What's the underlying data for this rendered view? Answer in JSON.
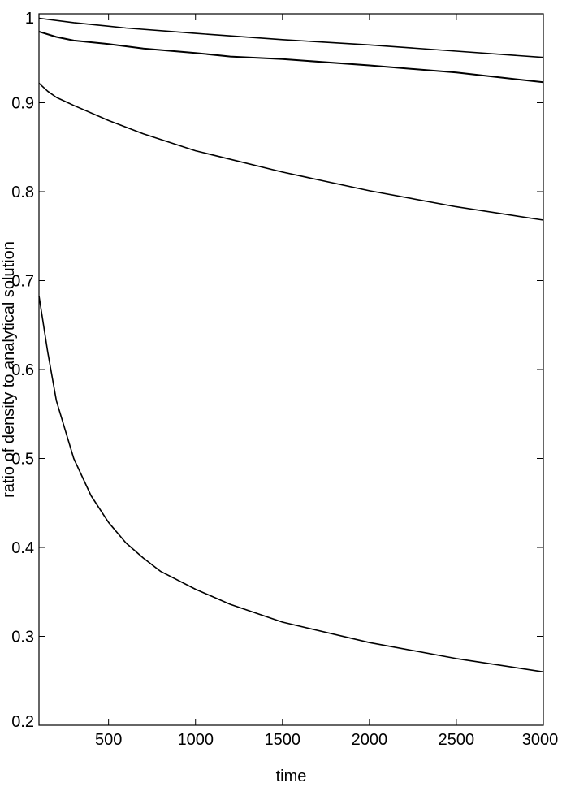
{
  "chart_data": {
    "type": "line",
    "title": "",
    "xlabel": "time",
    "ylabel": "ratio of density to analytical solution",
    "xlim": [
      100,
      3000
    ],
    "ylim": [
      0.2,
      1.0
    ],
    "x_ticks": [
      500,
      1000,
      1500,
      2000,
      2500,
      3000
    ],
    "y_ticks": [
      0.2,
      0.3,
      0.4,
      0.5,
      0.6,
      0.7,
      0.8,
      0.9,
      1.0
    ],
    "x_tick_labels": [
      "500",
      "1000",
      "1500",
      "2000",
      "2500",
      "3000"
    ],
    "y_tick_labels": [
      "0.2",
      "0.3",
      "0.4",
      "0.5",
      "0.6",
      "0.7",
      "0.8",
      "0.9",
      "1"
    ],
    "grid": false,
    "line_color": "#000000",
    "series": [
      {
        "x": [
          100,
          300,
          600,
          1000,
          1500,
          2000,
          2500,
          3000
        ],
        "values": [
          0.995,
          0.99,
          0.984,
          0.978,
          0.971,
          0.965,
          0.958,
          0.951
        ]
      },
      {
        "x": [
          100,
          200,
          300,
          500,
          700,
          1000,
          1200,
          1500,
          2000,
          2500,
          3000
        ],
        "values": [
          0.98,
          0.974,
          0.97,
          0.966,
          0.961,
          0.956,
          0.952,
          0.949,
          0.942,
          0.934,
          0.923
        ]
      },
      {
        "x": [
          100,
          150,
          200,
          300,
          500,
          700,
          1000,
          1500,
          2000,
          2500,
          3000
        ],
        "values": [
          0.922,
          0.913,
          0.906,
          0.897,
          0.88,
          0.865,
          0.846,
          0.822,
          0.801,
          0.783,
          0.768
        ]
      },
      {
        "x": [
          100,
          150,
          200,
          300,
          400,
          500,
          600,
          700,
          800,
          1000,
          1200,
          1500,
          2000,
          2500,
          3000
        ],
        "values": [
          0.683,
          0.62,
          0.565,
          0.5,
          0.458,
          0.428,
          0.405,
          0.388,
          0.373,
          0.353,
          0.336,
          0.316,
          0.293,
          0.275,
          0.26
        ]
      }
    ]
  }
}
